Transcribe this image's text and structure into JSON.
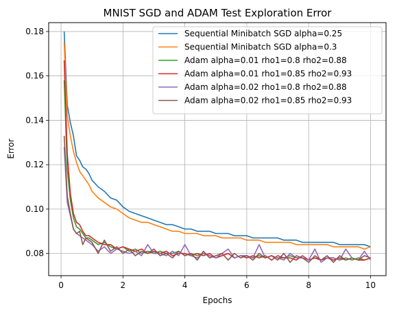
{
  "chart_data": {
    "type": "line",
    "title": "MNIST SGD and ADAM Test Exploration Error",
    "xlabel": "Epochs",
    "ylabel": "Error",
    "xlim": [
      -0.4,
      10.5
    ],
    "ylim": [
      0.07,
      0.184
    ],
    "xticks": [
      0,
      2,
      4,
      6,
      8,
      10
    ],
    "yticks": [
      0.08,
      0.1,
      0.12,
      0.14,
      0.16,
      0.18
    ],
    "xtick_labels": [
      "0",
      "2",
      "4",
      "6",
      "8",
      "10"
    ],
    "ytick_labels": [
      "0.08",
      "0.10",
      "0.12",
      "0.14",
      "0.16",
      "0.18"
    ],
    "grid": true,
    "legend_position": "top-right",
    "series": [
      {
        "name": "Sequential Minibatch SGD alpha=0.25",
        "color": "#1f77b4",
        "x": [
          0.1,
          0.2,
          0.3,
          0.4,
          0.5,
          0.6,
          0.7,
          0.8,
          0.9,
          1.0,
          1.2,
          1.4,
          1.6,
          1.8,
          2.0,
          2.2,
          2.4,
          2.6,
          2.8,
          3.0,
          3.2,
          3.4,
          3.6,
          3.8,
          4.0,
          4.2,
          4.4,
          4.6,
          4.8,
          5.0,
          5.2,
          5.4,
          5.6,
          5.8,
          6.0,
          6.2,
          6.4,
          6.6,
          6.8,
          7.0,
          7.2,
          7.4,
          7.6,
          7.8,
          8.0,
          8.2,
          8.4,
          8.6,
          8.8,
          9.0,
          9.2,
          9.4,
          9.6,
          9.8,
          10.0
        ],
        "y": [
          0.18,
          0.147,
          0.139,
          0.133,
          0.124,
          0.122,
          0.119,
          0.118,
          0.116,
          0.113,
          0.11,
          0.108,
          0.105,
          0.104,
          0.101,
          0.099,
          0.098,
          0.097,
          0.096,
          0.095,
          0.094,
          0.093,
          0.093,
          0.092,
          0.091,
          0.091,
          0.09,
          0.09,
          0.09,
          0.089,
          0.089,
          0.089,
          0.088,
          0.088,
          0.088,
          0.087,
          0.087,
          0.087,
          0.087,
          0.087,
          0.086,
          0.086,
          0.086,
          0.085,
          0.085,
          0.085,
          0.085,
          0.085,
          0.085,
          0.084,
          0.084,
          0.084,
          0.084,
          0.084,
          0.083
        ]
      },
      {
        "name": "Sequential Minibatch SGD alpha=0.3",
        "color": "#ff7f0e",
        "x": [
          0.1,
          0.2,
          0.3,
          0.4,
          0.5,
          0.6,
          0.7,
          0.8,
          0.9,
          1.0,
          1.2,
          1.4,
          1.6,
          1.8,
          2.0,
          2.2,
          2.4,
          2.6,
          2.8,
          3.0,
          3.2,
          3.4,
          3.6,
          3.8,
          4.0,
          4.2,
          4.4,
          4.6,
          4.8,
          5.0,
          5.2,
          5.4,
          5.6,
          5.8,
          6.0,
          6.2,
          6.4,
          6.6,
          6.8,
          7.0,
          7.2,
          7.4,
          7.6,
          7.8,
          8.0,
          8.2,
          8.4,
          8.6,
          8.8,
          9.0,
          9.2,
          9.4,
          9.6,
          9.8,
          10.0
        ],
        "y": [
          0.175,
          0.142,
          0.133,
          0.126,
          0.121,
          0.117,
          0.115,
          0.113,
          0.111,
          0.108,
          0.105,
          0.103,
          0.101,
          0.1,
          0.098,
          0.096,
          0.095,
          0.094,
          0.094,
          0.093,
          0.092,
          0.091,
          0.09,
          0.09,
          0.089,
          0.089,
          0.089,
          0.088,
          0.088,
          0.088,
          0.087,
          0.087,
          0.087,
          0.087,
          0.086,
          0.086,
          0.086,
          0.085,
          0.085,
          0.085,
          0.085,
          0.085,
          0.084,
          0.084,
          0.084,
          0.084,
          0.084,
          0.084,
          0.083,
          0.083,
          0.083,
          0.083,
          0.083,
          0.082,
          0.083
        ]
      },
      {
        "name": "Adam alpha=0.01 rho1=0.8 rho2=0.88",
        "color": "#2ca02c",
        "x": [
          0.1,
          0.2,
          0.3,
          0.4,
          0.5,
          0.6,
          0.7,
          0.8,
          0.9,
          1.0,
          1.2,
          1.4,
          1.6,
          1.8,
          2.0,
          2.2,
          2.4,
          2.6,
          2.8,
          3.0,
          3.2,
          3.4,
          3.6,
          3.8,
          4.0,
          4.2,
          4.4,
          4.6,
          4.8,
          5.0,
          5.2,
          5.4,
          5.6,
          5.8,
          6.0,
          6.2,
          6.4,
          6.6,
          6.8,
          7.0,
          7.2,
          7.4,
          7.6,
          7.8,
          8.0,
          8.2,
          8.4,
          8.6,
          8.8,
          9.0,
          9.2,
          9.4,
          9.6,
          9.8,
          10.0
        ],
        "y": [
          0.158,
          0.118,
          0.104,
          0.096,
          0.092,
          0.091,
          0.089,
          0.087,
          0.087,
          0.086,
          0.084,
          0.085,
          0.083,
          0.082,
          0.083,
          0.081,
          0.082,
          0.08,
          0.081,
          0.08,
          0.081,
          0.08,
          0.08,
          0.081,
          0.079,
          0.08,
          0.079,
          0.08,
          0.079,
          0.078,
          0.079,
          0.08,
          0.078,
          0.079,
          0.079,
          0.078,
          0.079,
          0.078,
          0.079,
          0.078,
          0.078,
          0.079,
          0.078,
          0.078,
          0.077,
          0.078,
          0.077,
          0.078,
          0.078,
          0.077,
          0.078,
          0.077,
          0.078,
          0.077,
          0.078
        ]
      },
      {
        "name": "Adam alpha=0.01 rho1=0.85 rho2=0.93",
        "color": "#d62728",
        "x": [
          0.1,
          0.2,
          0.3,
          0.4,
          0.5,
          0.6,
          0.7,
          0.8,
          0.9,
          1.0,
          1.2,
          1.4,
          1.6,
          1.8,
          2.0,
          2.2,
          2.4,
          2.6,
          2.8,
          3.0,
          3.2,
          3.4,
          3.6,
          3.8,
          4.0,
          4.2,
          4.4,
          4.6,
          4.8,
          5.0,
          5.2,
          5.4,
          5.6,
          5.8,
          6.0,
          6.2,
          6.4,
          6.6,
          6.8,
          7.0,
          7.2,
          7.4,
          7.6,
          7.8,
          8.0,
          8.2,
          8.4,
          8.6,
          8.8,
          9.0,
          9.2,
          9.4,
          9.6,
          9.8,
          10.0
        ],
        "y": [
          0.167,
          0.125,
          0.107,
          0.098,
          0.094,
          0.093,
          0.09,
          0.088,
          0.088,
          0.087,
          0.085,
          0.084,
          0.084,
          0.082,
          0.083,
          0.082,
          0.081,
          0.082,
          0.08,
          0.081,
          0.08,
          0.081,
          0.079,
          0.08,
          0.08,
          0.079,
          0.08,
          0.079,
          0.08,
          0.078,
          0.079,
          0.08,
          0.078,
          0.079,
          0.078,
          0.079,
          0.078,
          0.079,
          0.077,
          0.079,
          0.078,
          0.078,
          0.077,
          0.079,
          0.077,
          0.078,
          0.077,
          0.078,
          0.077,
          0.078,
          0.077,
          0.078,
          0.077,
          0.077,
          0.078
        ]
      },
      {
        "name": "Adam alpha=0.02 rho1=0.8 rho2=0.88",
        "color": "#9467bd",
        "x": [
          0.1,
          0.2,
          0.3,
          0.4,
          0.5,
          0.6,
          0.7,
          0.8,
          0.9,
          1.0,
          1.2,
          1.4,
          1.6,
          1.8,
          2.0,
          2.2,
          2.4,
          2.6,
          2.8,
          3.0,
          3.2,
          3.4,
          3.6,
          3.8,
          4.0,
          4.2,
          4.4,
          4.6,
          4.8,
          5.0,
          5.2,
          5.4,
          5.6,
          5.8,
          6.0,
          6.2,
          6.4,
          6.6,
          6.8,
          7.0,
          7.2,
          7.4,
          7.6,
          7.8,
          8.0,
          8.2,
          8.4,
          8.6,
          8.8,
          9.0,
          9.2,
          9.4,
          9.6,
          9.8,
          10.0
        ],
        "y": [
          0.128,
          0.103,
          0.097,
          0.091,
          0.089,
          0.088,
          0.087,
          0.086,
          0.085,
          0.084,
          0.081,
          0.083,
          0.08,
          0.082,
          0.081,
          0.08,
          0.081,
          0.079,
          0.084,
          0.08,
          0.08,
          0.079,
          0.081,
          0.079,
          0.084,
          0.079,
          0.078,
          0.08,
          0.079,
          0.078,
          0.08,
          0.082,
          0.078,
          0.079,
          0.079,
          0.078,
          0.084,
          0.078,
          0.079,
          0.078,
          0.077,
          0.08,
          0.078,
          0.078,
          0.077,
          0.082,
          0.076,
          0.078,
          0.078,
          0.077,
          0.082,
          0.078,
          0.077,
          0.081,
          0.077
        ]
      },
      {
        "name": "Adam alpha=0.02 rho1=0.85 rho2=0.93",
        "color": "#8c564b",
        "x": [
          0.1,
          0.2,
          0.3,
          0.4,
          0.5,
          0.6,
          0.7,
          0.8,
          0.9,
          1.0,
          1.2,
          1.4,
          1.6,
          1.8,
          2.0,
          2.2,
          2.4,
          2.6,
          2.8,
          3.0,
          3.2,
          3.4,
          3.6,
          3.8,
          4.0,
          4.2,
          4.4,
          4.6,
          4.8,
          5.0,
          5.2,
          5.4,
          5.6,
          5.8,
          6.0,
          6.2,
          6.4,
          6.6,
          6.8,
          7.0,
          7.2,
          7.4,
          7.6,
          7.8,
          8.0,
          8.2,
          8.4,
          8.6,
          8.8,
          9.0,
          9.2,
          9.4,
          9.6,
          9.8,
          10.0
        ],
        "y": [
          0.133,
          0.106,
          0.098,
          0.091,
          0.089,
          0.09,
          0.084,
          0.087,
          0.086,
          0.085,
          0.08,
          0.086,
          0.081,
          0.083,
          0.08,
          0.082,
          0.079,
          0.081,
          0.08,
          0.082,
          0.079,
          0.08,
          0.078,
          0.081,
          0.079,
          0.08,
          0.077,
          0.081,
          0.078,
          0.079,
          0.08,
          0.077,
          0.08,
          0.078,
          0.079,
          0.077,
          0.08,
          0.078,
          0.079,
          0.077,
          0.08,
          0.076,
          0.079,
          0.078,
          0.076,
          0.079,
          0.077,
          0.079,
          0.076,
          0.079,
          0.077,
          0.078,
          0.077,
          0.079,
          0.078
        ]
      }
    ]
  }
}
